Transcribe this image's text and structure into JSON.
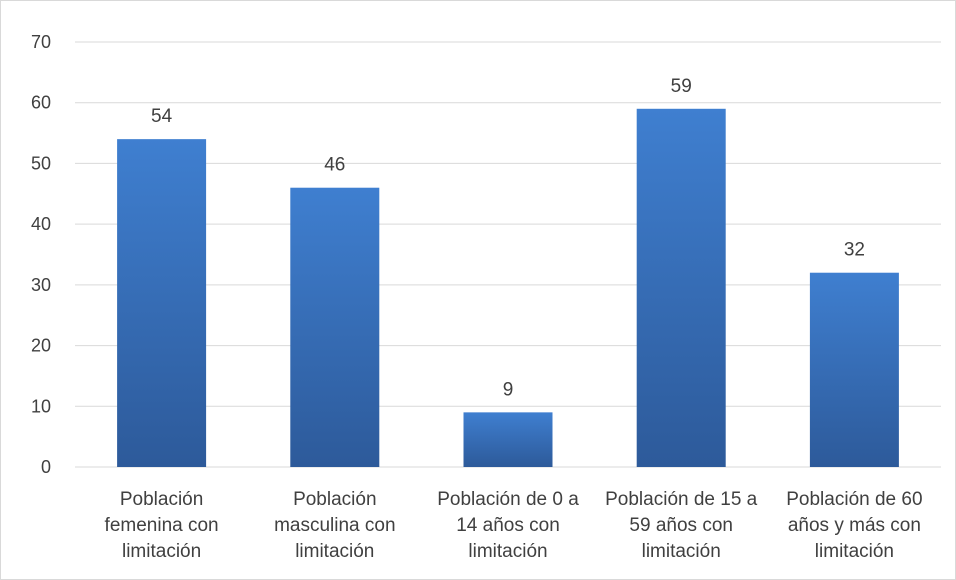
{
  "chart_data": {
    "type": "bar",
    "categories": [
      [
        "Población",
        "femenina con",
        "limitación"
      ],
      [
        "Población",
        "masculina con",
        "limitación"
      ],
      [
        "Población de 0 a",
        "14 años con",
        "limitación"
      ],
      [
        "Población de 15 a",
        "59 años con",
        "limitación"
      ],
      [
        "Población de 60",
        "años y más con",
        "limitación"
      ]
    ],
    "values": [
      54,
      46,
      9,
      59,
      32
    ],
    "ylim": [
      0,
      70
    ],
    "yticks": [
      0,
      10,
      20,
      30,
      40,
      50,
      60,
      70
    ],
    "grid": true,
    "data_labels": true,
    "colors": {
      "bar_top": "#3f7fd0",
      "bar_bottom": "#2d5a9a",
      "grid": "#d9d9d9",
      "text": "#404040"
    }
  }
}
